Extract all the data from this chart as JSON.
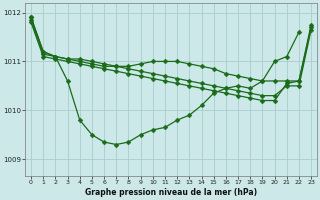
{
  "xlabel": "Graphe pression niveau de la mer (hPa)",
  "background_color": "#cce8e8",
  "grid_color": "#aacccc",
  "line_color": "#1a6b1a",
  "marker": "D",
  "markersize": 2.5,
  "linewidth": 0.9,
  "ylim": [
    1008.65,
    1012.2
  ],
  "xlim": [
    -0.5,
    23.5
  ],
  "yticks": [
    1009,
    1010,
    1011,
    1012
  ],
  "xticks": [
    0,
    1,
    2,
    3,
    4,
    5,
    6,
    7,
    8,
    9,
    10,
    11,
    12,
    13,
    14,
    15,
    16,
    17,
    18,
    19,
    20,
    21,
    22,
    23
  ],
  "series": [
    [
      1011.9,
      1011.2,
      1011.1,
      1010.6,
      1009.8,
      1009.5,
      1009.35,
      1009.3,
      1009.35,
      1009.5,
      1009.6,
      1009.65,
      1009.8,
      1009.9,
      1010.1,
      1010.35,
      1010.45,
      1010.5,
      1010.45,
      1010.6,
      1011.0,
      1011.1,
      1011.6,
      null
    ],
    [
      1011.8,
      1011.1,
      1011.05,
      1011.0,
      1010.95,
      1010.9,
      1010.85,
      1010.8,
      1010.75,
      1010.7,
      1010.65,
      1010.6,
      1010.55,
      1010.5,
      1010.45,
      1010.4,
      1010.35,
      1010.3,
      1010.25,
      1010.2,
      1010.2,
      1010.55,
      1010.6,
      1011.7
    ],
    [
      1011.85,
      1011.15,
      1011.1,
      1011.05,
      1011.0,
      1010.95,
      1010.9,
      1010.9,
      1010.9,
      1010.95,
      1011.0,
      1011.0,
      1011.0,
      1010.95,
      1010.9,
      1010.85,
      1010.75,
      1010.7,
      1010.65,
      1010.6,
      1010.6,
      1010.6,
      1010.6,
      1011.75
    ],
    [
      1011.9,
      1011.2,
      1011.1,
      1011.05,
      1011.05,
      1011.0,
      1010.95,
      1010.9,
      1010.85,
      1010.8,
      1010.75,
      1010.7,
      1010.65,
      1010.6,
      1010.55,
      1010.5,
      1010.45,
      1010.4,
      1010.35,
      1010.3,
      1010.3,
      1010.5,
      1010.5,
      1011.65
    ]
  ]
}
